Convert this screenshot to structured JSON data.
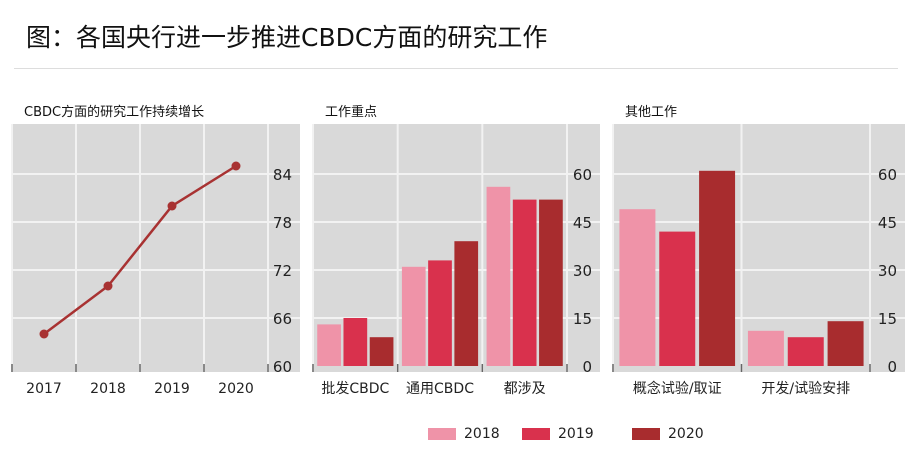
{
  "title": "图：各国央行进一步推进CBDC方面的研究工作",
  "colors": {
    "2018": "#ef93a8",
    "2019": "#d9314d",
    "2020": "#a82c2e",
    "line": "#a83232",
    "plot_bg": "#d9d9d9",
    "grid": "#f2f2f2"
  },
  "legend": [
    {
      "label": "2018",
      "color": "#ef93a8"
    },
    {
      "label": "2019",
      "color": "#d9314d"
    },
    {
      "label": "2020",
      "color": "#a82c2e"
    }
  ],
  "chart_data": [
    {
      "type": "line",
      "title": "CBDC方面的研究工作持续增长",
      "categories": [
        "2017",
        "2018",
        "2019",
        "2020"
      ],
      "values": [
        64,
        70,
        80,
        85
      ],
      "ylim": [
        60,
        84
      ],
      "yticks": [
        "60",
        "66",
        "72",
        "78",
        "84"
      ],
      "y_axis_side": "right",
      "grid": true
    },
    {
      "type": "bar",
      "title": "工作重点",
      "categories": [
        "批发CBDC",
        "通用CBDC",
        "都涉及"
      ],
      "series": [
        {
          "name": "2018",
          "values": [
            13,
            31,
            56
          ]
        },
        {
          "name": "2019",
          "values": [
            15,
            33,
            52
          ]
        },
        {
          "name": "2020",
          "values": [
            9,
            39,
            52
          ]
        }
      ],
      "ylim": [
        0,
        60
      ],
      "yticks": [
        "0",
        "15",
        "30",
        "45",
        "60"
      ],
      "y_axis_side": "right",
      "grid": true
    },
    {
      "type": "bar",
      "title": "其他工作",
      "categories": [
        "概念试验/取证",
        "开发/试验安排"
      ],
      "series": [
        {
          "name": "2018",
          "values": [
            49,
            11
          ]
        },
        {
          "name": "2019",
          "values": [
            42,
            9
          ]
        },
        {
          "name": "2020",
          "values": [
            61,
            14
          ]
        }
      ],
      "ylim": [
        0,
        60
      ],
      "yticks": [
        "0",
        "15",
        "30",
        "45",
        "60"
      ],
      "y_axis_side": "right",
      "grid": true
    }
  ]
}
